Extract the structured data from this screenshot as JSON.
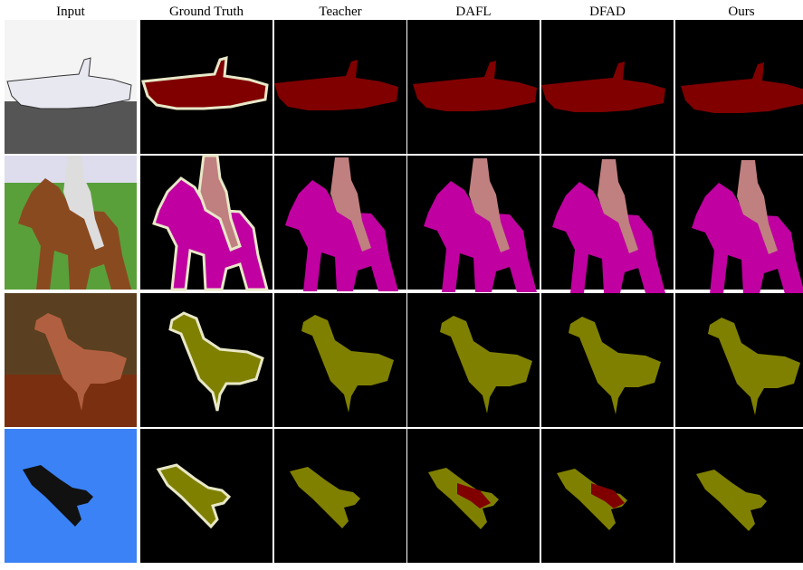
{
  "columns": [
    "Input",
    "Ground Truth",
    "Teacher",
    "DAFL",
    "DFAD",
    "Ours"
  ]
}
